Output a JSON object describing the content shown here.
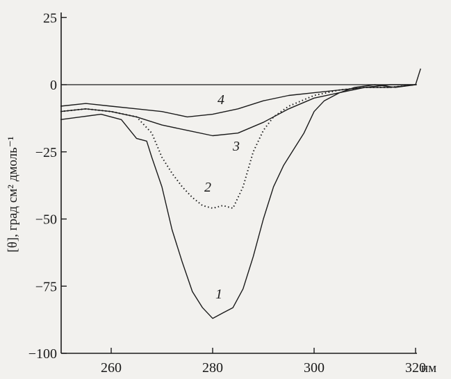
{
  "chart_data": {
    "type": "line",
    "title": "",
    "xlabel": "",
    "x_unit": "нм",
    "ylabel": "[θ], град см² дмоль⁻¹",
    "xlim": [
      250,
      322
    ],
    "ylim": [
      -100,
      25
    ],
    "x_ticks": [
      260,
      280,
      300,
      320
    ],
    "y_ticks": [
      25,
      0,
      -25,
      -50,
      -75,
      -100
    ],
    "grid": false,
    "colors": {
      "ink": "#1a1a1a",
      "background": "#f2f1ee"
    },
    "series": [
      {
        "label": "1",
        "style": "solid",
        "x": [
          250,
          254,
          258,
          262,
          265,
          267,
          268,
          270,
          272,
          274,
          276,
          278,
          280,
          282,
          284,
          286,
          288,
          290,
          292,
          294,
          296,
          298,
          300,
          302,
          305,
          308,
          312,
          316,
          320,
          321
        ],
        "y": [
          -13,
          -12,
          -11,
          -13,
          -20,
          -21,
          -27,
          -38,
          -54,
          -66,
          -77,
          -83,
          -87,
          -85,
          -83,
          -76,
          -64,
          -50,
          -38,
          -30,
          -24,
          -18,
          -10,
          -6,
          -3,
          -1,
          0,
          -1,
          0,
          6
        ]
      },
      {
        "label": "2",
        "style": "dotted",
        "x": [
          250,
          255,
          260,
          265,
          268,
          270,
          272,
          274,
          276,
          278,
          280,
          282,
          284,
          286,
          288,
          290,
          292,
          295,
          300,
          305,
          310,
          315,
          320
        ],
        "y": [
          -10,
          -9,
          -10,
          -12,
          -18,
          -27,
          -33,
          -38,
          -42,
          -45,
          -46,
          -45,
          -46,
          -38,
          -25,
          -17,
          -12,
          -8,
          -4,
          -2,
          -1,
          -1,
          0
        ]
      },
      {
        "label": "3",
        "style": "solid",
        "x": [
          250,
          255,
          260,
          265,
          270,
          275,
          280,
          285,
          290,
          295,
          300,
          305,
          310,
          315,
          320
        ],
        "y": [
          -10,
          -9,
          -10,
          -12,
          -15,
          -17,
          -19,
          -18,
          -14,
          -9,
          -5,
          -3,
          -1,
          -1,
          0
        ]
      },
      {
        "label": "4",
        "style": "solid",
        "x": [
          250,
          255,
          260,
          265,
          270,
          275,
          280,
          285,
          290,
          295,
          300,
          305,
          310,
          315,
          320
        ],
        "y": [
          -8,
          -7,
          -8,
          -9,
          -10,
          -12,
          -11,
          -9,
          -6,
          -4,
          -3,
          -2,
          -1,
          0,
          0
        ]
      }
    ],
    "series_labels": [
      "1",
      "2",
      "3",
      "4"
    ]
  }
}
